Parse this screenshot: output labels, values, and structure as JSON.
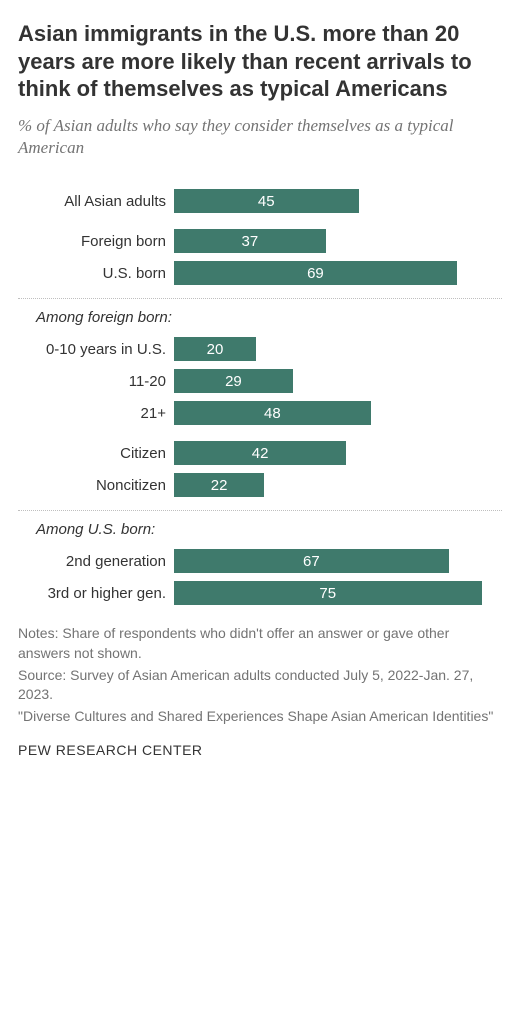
{
  "title": "Asian immigrants in the U.S. more than 20 years are more likely than recent arrivals to think of themselves as typical Americans",
  "title_fontsize": 22,
  "subtitle": "% of Asian adults who say they consider themselves as a typical American",
  "subtitle_fontsize": 17,
  "bar_color": "#3f7a6c",
  "max_value": 80,
  "groups": [
    {
      "rows": [
        {
          "label": "All Asian adults",
          "value": 45
        }
      ]
    },
    {
      "rows": [
        {
          "label": "Foreign born",
          "value": 37,
          "gap": true
        },
        {
          "label": "U.S. born",
          "value": 69
        }
      ]
    },
    {
      "divider": true,
      "header": "Among foreign born:",
      "rows": [
        {
          "label": "0-10 years in U.S.",
          "value": 20
        },
        {
          "label": "11-20",
          "value": 29
        },
        {
          "label": "21+",
          "value": 48
        }
      ]
    },
    {
      "rows": [
        {
          "label": "Citizen",
          "value": 42,
          "gap": true
        },
        {
          "label": "Noncitizen",
          "value": 22
        }
      ]
    },
    {
      "divider": true,
      "header": "Among U.S. born:",
      "rows": [
        {
          "label": "2nd generation",
          "value": 67
        },
        {
          "label": "3rd or higher gen.",
          "value": 75
        }
      ]
    }
  ],
  "notes": [
    "Notes: Share of respondents who didn't offer an answer or gave other answers not shown.",
    "Source: Survey of Asian American adults conducted July 5, 2022-Jan. 27, 2023.",
    "\"Diverse Cultures and Shared Experiences Shape Asian American Identities\""
  ],
  "footer": "PEW RESEARCH CENTER"
}
